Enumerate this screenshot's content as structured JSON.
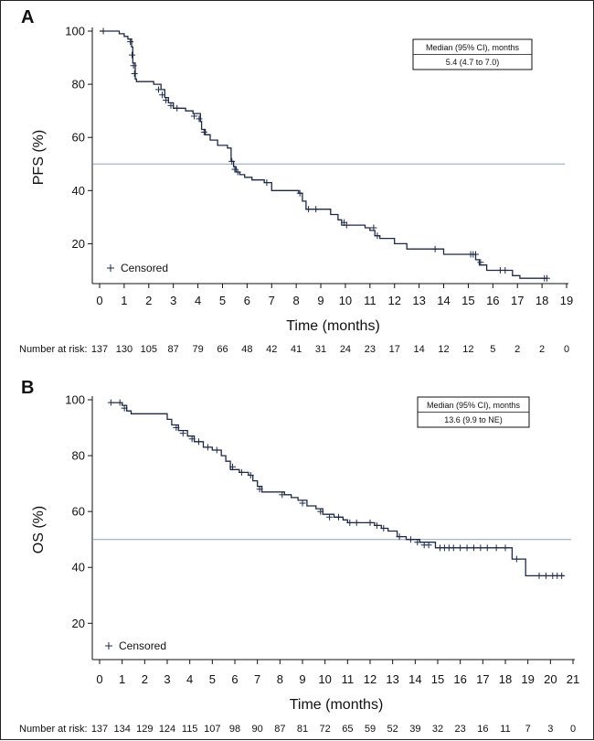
{
  "colors": {
    "curve": "#1e2a44",
    "reference_line": "#8fa5b5",
    "axis": "#111111"
  },
  "chart_data": [
    {
      "type": "line",
      "panel_label": "A",
      "xlabel": "Time (months)",
      "ylabel": "PFS (%)",
      "xlim": [
        0,
        19
      ],
      "ylim": [
        5,
        100
      ],
      "x_ticks": [
        0,
        1,
        2,
        3,
        4,
        5,
        6,
        7,
        8,
        9,
        10,
        11,
        12,
        13,
        14,
        15,
        16,
        17,
        18,
        19
      ],
      "y_ticks": [
        20,
        40,
        60,
        80,
        100
      ],
      "reference_y": 50,
      "legend": "Censored",
      "legend_placement": "bottom-left",
      "median_box": {
        "header": "Median (95% CI), months",
        "value": "5.4 (4.7 to 7.0)"
      },
      "risk_label": "Number at risk:",
      "risk_counts": [
        "137",
        "130",
        "105",
        "87",
        "79",
        "66",
        "48",
        "42",
        "41",
        "31",
        "24",
        "23",
        "17",
        "14",
        "12",
        "12",
        "5",
        "2",
        "2",
        "0"
      ],
      "series": [
        {
          "steps": [
            [
              0,
              100
            ],
            [
              0.8,
              99
            ],
            [
              1.0,
              98
            ],
            [
              1.15,
              97
            ],
            [
              1.3,
              94
            ],
            [
              1.35,
              88
            ],
            [
              1.45,
              82
            ],
            [
              1.5,
              81
            ],
            [
              2.2,
              80
            ],
            [
              2.5,
              78
            ],
            [
              2.65,
              75
            ],
            [
              2.8,
              73
            ],
            [
              3.0,
              71
            ],
            [
              3.5,
              70
            ],
            [
              3.8,
              69
            ],
            [
              4.1,
              66
            ],
            [
              4.15,
              63
            ],
            [
              4.3,
              61
            ],
            [
              4.5,
              59
            ],
            [
              4.8,
              57
            ],
            [
              5.2,
              56
            ],
            [
              5.35,
              51
            ],
            [
              5.45,
              49
            ],
            [
              5.55,
              47
            ],
            [
              5.7,
              46
            ],
            [
              5.9,
              45
            ],
            [
              6.2,
              44
            ],
            [
              6.7,
              43
            ],
            [
              7.0,
              40
            ],
            [
              8.1,
              39
            ],
            [
              8.25,
              36
            ],
            [
              8.4,
              33
            ],
            [
              9.4,
              31
            ],
            [
              9.7,
              29
            ],
            [
              9.85,
              27
            ],
            [
              10.8,
              26
            ],
            [
              11.0,
              25
            ],
            [
              11.2,
              23
            ],
            [
              11.4,
              22
            ],
            [
              12.0,
              20
            ],
            [
              12.5,
              18
            ],
            [
              14.0,
              16
            ],
            [
              15.3,
              14
            ],
            [
              15.45,
              12
            ],
            [
              15.75,
              10
            ],
            [
              16.8,
              8
            ],
            [
              17.1,
              7
            ],
            [
              18.2,
              7
            ]
          ],
          "censored": [
            [
              0.15,
              100
            ],
            [
              1.25,
              96
            ],
            [
              1.32,
              91
            ],
            [
              1.38,
              87
            ],
            [
              1.42,
              84
            ],
            [
              2.4,
              78
            ],
            [
              2.55,
              76
            ],
            [
              2.7,
              74
            ],
            [
              2.9,
              72
            ],
            [
              3.15,
              71
            ],
            [
              3.85,
              68
            ],
            [
              4.05,
              67
            ],
            [
              4.25,
              62
            ],
            [
              5.38,
              51
            ],
            [
              5.5,
              48
            ],
            [
              5.62,
              47
            ],
            [
              6.8,
              43
            ],
            [
              8.15,
              39
            ],
            [
              8.5,
              33
            ],
            [
              8.8,
              33
            ],
            [
              9.95,
              28
            ],
            [
              10.05,
              27
            ],
            [
              11.15,
              26
            ],
            [
              11.3,
              23
            ],
            [
              13.65,
              18
            ],
            [
              15.1,
              16
            ],
            [
              15.2,
              16
            ],
            [
              15.3,
              16
            ],
            [
              15.5,
              13
            ],
            [
              16.3,
              10
            ],
            [
              16.5,
              10
            ],
            [
              18.1,
              7
            ],
            [
              18.2,
              7
            ]
          ]
        }
      ]
    },
    {
      "type": "line",
      "panel_label": "B",
      "xlabel": "Time (months)",
      "ylabel": "OS (%)",
      "xlim": [
        0,
        21
      ],
      "ylim": [
        7,
        100
      ],
      "x_ticks": [
        0,
        1,
        2,
        3,
        4,
        5,
        6,
        7,
        8,
        9,
        10,
        11,
        12,
        13,
        14,
        15,
        16,
        17,
        18,
        19,
        20,
        21
      ],
      "y_ticks": [
        20,
        40,
        60,
        80,
        100
      ],
      "reference_y": 50,
      "legend": "Censored",
      "legend_placement": "bottom-left",
      "median_box": {
        "header": "Median (95% CI), months",
        "value": "13.6 (9.9 to NE)"
      },
      "risk_label": "Number at risk:",
      "risk_counts": [
        "137",
        "134",
        "129",
        "124",
        "115",
        "107",
        "98",
        "90",
        "87",
        "81",
        "72",
        "65",
        "59",
        "52",
        "39",
        "32",
        "23",
        "16",
        "11",
        "7",
        "3",
        "0"
      ],
      "series": [
        {
          "steps": [
            [
              0.5,
              99
            ],
            [
              1.0,
              98
            ],
            [
              1.2,
              96
            ],
            [
              1.4,
              95
            ],
            [
              3.0,
              93
            ],
            [
              3.2,
              91
            ],
            [
              3.5,
              89
            ],
            [
              3.9,
              87
            ],
            [
              4.2,
              85
            ],
            [
              4.6,
              83
            ],
            [
              5.0,
              82
            ],
            [
              5.4,
              80
            ],
            [
              5.6,
              78
            ],
            [
              5.8,
              75
            ],
            [
              6.2,
              74
            ],
            [
              6.6,
              73
            ],
            [
              6.8,
              71
            ],
            [
              7.0,
              69
            ],
            [
              7.2,
              67
            ],
            [
              8.2,
              66
            ],
            [
              8.5,
              65
            ],
            [
              8.8,
              64
            ],
            [
              9.2,
              62
            ],
            [
              9.6,
              61
            ],
            [
              9.9,
              59
            ],
            [
              10.4,
              58
            ],
            [
              10.8,
              57
            ],
            [
              11.0,
              56
            ],
            [
              12.2,
              55
            ],
            [
              12.5,
              54
            ],
            [
              12.8,
              53
            ],
            [
              13.2,
              51
            ],
            [
              13.6,
              50
            ],
            [
              14.2,
              49
            ],
            [
              14.9,
              47
            ],
            [
              18.3,
              43
            ],
            [
              18.9,
              37
            ],
            [
              20.6,
              37
            ]
          ],
          "censored": [
            [
              0.5,
              99
            ],
            [
              0.9,
              99
            ],
            [
              1.1,
              97
            ],
            [
              3.4,
              90
            ],
            [
              3.7,
              88
            ],
            [
              4.1,
              86
            ],
            [
              4.4,
              85
            ],
            [
              4.8,
              83
            ],
            [
              5.2,
              82
            ],
            [
              5.9,
              76
            ],
            [
              6.3,
              74
            ],
            [
              6.7,
              73
            ],
            [
              7.1,
              68
            ],
            [
              8.1,
              66
            ],
            [
              9.0,
              63
            ],
            [
              9.8,
              60
            ],
            [
              10.2,
              58
            ],
            [
              10.6,
              58
            ],
            [
              11.1,
              56
            ],
            [
              11.4,
              56
            ],
            [
              12.0,
              56
            ],
            [
              12.3,
              55
            ],
            [
              12.6,
              54
            ],
            [
              13.3,
              51
            ],
            [
              13.8,
              50
            ],
            [
              14.1,
              49
            ],
            [
              14.4,
              48
            ],
            [
              14.6,
              48
            ],
            [
              15.1,
              47
            ],
            [
              15.3,
              47
            ],
            [
              15.5,
              47
            ],
            [
              15.7,
              47
            ],
            [
              16.0,
              47
            ],
            [
              16.3,
              47
            ],
            [
              16.6,
              47
            ],
            [
              16.9,
              47
            ],
            [
              17.2,
              47
            ],
            [
              17.6,
              47
            ],
            [
              18.0,
              47
            ],
            [
              18.5,
              43
            ],
            [
              19.5,
              37
            ],
            [
              19.8,
              37
            ],
            [
              20.1,
              37
            ],
            [
              20.3,
              37
            ],
            [
              20.5,
              37
            ]
          ]
        }
      ]
    }
  ]
}
